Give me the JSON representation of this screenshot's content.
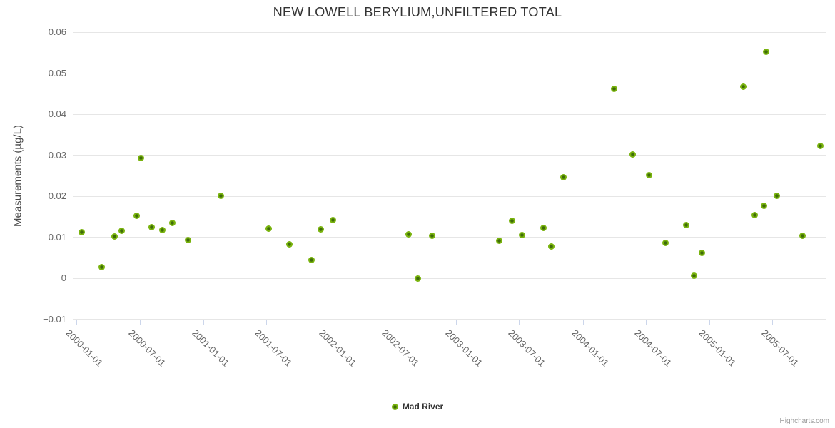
{
  "credits": "Highcharts.com",
  "colors": {
    "marker_outer": "#79b30e",
    "marker_inner": "#3f6c08",
    "grid": "#e6e6e6",
    "axis_line": "#ccd6eb",
    "tick_label": "#666666",
    "title": "#333333",
    "credits": "#999999"
  },
  "chart_data": {
    "type": "scatter",
    "title": "NEW LOWELL BERYLIUM,UNFILTERED TOTAL",
    "xlabel": "",
    "ylabel": "Measurements (µg/L)",
    "ylim": [
      -0.01,
      0.06
    ],
    "grid": "horizontal-only",
    "legend_position": "bottom-center",
    "yticks": [
      {
        "v": -0.01,
        "label": "−0.01"
      },
      {
        "v": 0,
        "label": "0"
      },
      {
        "v": 0.01,
        "label": "0.01"
      },
      {
        "v": 0.02,
        "label": "0.02"
      },
      {
        "v": 0.03,
        "label": "0.03"
      },
      {
        "v": 0.04,
        "label": "0.04"
      },
      {
        "v": 0.05,
        "label": "0.05"
      },
      {
        "v": 0.06,
        "label": "0.06"
      }
    ],
    "xticks": [
      "2000-01-01",
      "2000-07-01",
      "2001-01-01",
      "2001-07-01",
      "2002-01-01",
      "2002-07-01",
      "2003-01-01",
      "2003-07-01",
      "2004-01-01",
      "2004-07-01",
      "2005-01-01",
      "2005-07-01"
    ],
    "series": [
      {
        "name": "Mad River",
        "color": "#79b30e",
        "points": [
          {
            "date": "2000-01-14",
            "value": 0.0112
          },
          {
            "date": "2000-03-13",
            "value": 0.0028
          },
          {
            "date": "2000-04-18",
            "value": 0.0103
          },
          {
            "date": "2000-05-10",
            "value": 0.0116
          },
          {
            "date": "2000-06-22",
            "value": 0.0152
          },
          {
            "date": "2000-07-03",
            "value": 0.0293
          },
          {
            "date": "2000-08-04",
            "value": 0.0124
          },
          {
            "date": "2000-09-03",
            "value": 0.0117
          },
          {
            "date": "2000-10-03",
            "value": 0.0135
          },
          {
            "date": "2000-11-16",
            "value": 0.0094
          },
          {
            "date": "2001-02-20",
            "value": 0.0201
          },
          {
            "date": "2001-07-08",
            "value": 0.0122
          },
          {
            "date": "2001-09-06",
            "value": 0.0083
          },
          {
            "date": "2001-11-08",
            "value": 0.0044
          },
          {
            "date": "2001-12-04",
            "value": 0.012
          },
          {
            "date": "2002-01-09",
            "value": 0.0143
          },
          {
            "date": "2002-08-16",
            "value": 0.0108
          },
          {
            "date": "2002-09-11",
            "value": 0.0
          },
          {
            "date": "2002-10-23",
            "value": 0.0104
          },
          {
            "date": "2003-05-04",
            "value": 0.0091
          },
          {
            "date": "2003-06-10",
            "value": 0.014
          },
          {
            "date": "2003-07-09",
            "value": 0.0105
          },
          {
            "date": "2003-09-08",
            "value": 0.0123
          },
          {
            "date": "2003-10-01",
            "value": 0.0077
          },
          {
            "date": "2003-11-05",
            "value": 0.0246
          },
          {
            "date": "2004-03-30",
            "value": 0.0462
          },
          {
            "date": "2004-05-23",
            "value": 0.0302
          },
          {
            "date": "2004-07-09",
            "value": 0.0252
          },
          {
            "date": "2004-08-25",
            "value": 0.0086
          },
          {
            "date": "2004-10-25",
            "value": 0.013
          },
          {
            "date": "2004-11-17",
            "value": 0.0007
          },
          {
            "date": "2004-12-09",
            "value": 0.0062
          },
          {
            "date": "2005-04-07",
            "value": 0.0467
          },
          {
            "date": "2005-05-10",
            "value": 0.0155
          },
          {
            "date": "2005-06-05",
            "value": 0.0177
          },
          {
            "date": "2005-06-13",
            "value": 0.0553
          },
          {
            "date": "2005-07-12",
            "value": 0.0202
          },
          {
            "date": "2005-09-26",
            "value": 0.0104
          },
          {
            "date": "2005-11-15",
            "value": 0.0323
          }
        ]
      }
    ]
  }
}
